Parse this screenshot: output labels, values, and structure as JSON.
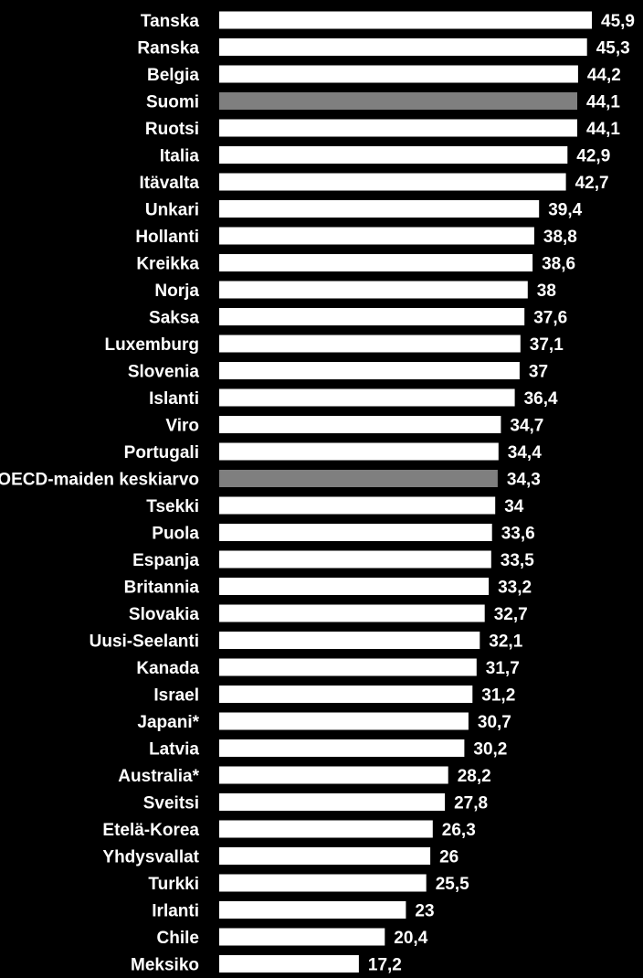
{
  "chart_data": {
    "type": "bar",
    "orientation": "horizontal",
    "title": "",
    "xlabel": "",
    "ylabel": "",
    "xlim": [
      0,
      45.9
    ],
    "grid": false,
    "legend": "none",
    "colors": {
      "background": "#000000",
      "bar": "#ffffff",
      "highlight": "#7f7f7f",
      "text": "#ffffff"
    },
    "categories": [
      "Tanska",
      "Ranska",
      "Belgia",
      "Suomi",
      "Ruotsi",
      "Italia",
      "Itävalta",
      "Unkari",
      "Hollanti",
      "Kreikka",
      "Norja",
      "Saksa",
      "Luxemburg",
      "Slovenia",
      "Islanti",
      "Viro",
      "Portugali",
      "OECD-maiden keskiarvo",
      "Tsekki",
      "Puola",
      "Espanja",
      "Britannia",
      "Slovakia",
      "Uusi-Seelanti",
      "Kanada",
      "Israel",
      "Japani*",
      "Latvia",
      "Australia*",
      "Sveitsi",
      "Etelä-Korea",
      "Yhdysvallat",
      "Turkki",
      "Irlanti",
      "Chile",
      "Meksiko"
    ],
    "values": [
      45.9,
      45.3,
      44.2,
      44.1,
      44.1,
      42.9,
      42.7,
      39.4,
      38.8,
      38.6,
      38,
      37.6,
      37.1,
      37,
      36.4,
      34.7,
      34.4,
      34.3,
      34,
      33.6,
      33.5,
      33.2,
      32.7,
      32.1,
      31.7,
      31.2,
      30.7,
      30.2,
      28.2,
      27.8,
      26.3,
      26,
      25.5,
      23,
      20.4,
      17.2
    ],
    "value_labels": [
      "45,9",
      "45,3",
      "44,2",
      "44,1",
      "44,1",
      "42,9",
      "42,7",
      "39,4",
      "38,8",
      "38,6",
      "38",
      "37,6",
      "37,1",
      "37",
      "36,4",
      "34,7",
      "34,4",
      "34,3",
      "34",
      "33,6",
      "33,5",
      "33,2",
      "32,7",
      "32,1",
      "31,7",
      "31,2",
      "30,7",
      "30,2",
      "28,2",
      "27,8",
      "26,3",
      "26",
      "25,5",
      "23",
      "20,4",
      "17,2"
    ],
    "highlighted": [
      "Suomi",
      "OECD-maiden keskiarvo"
    ]
  }
}
